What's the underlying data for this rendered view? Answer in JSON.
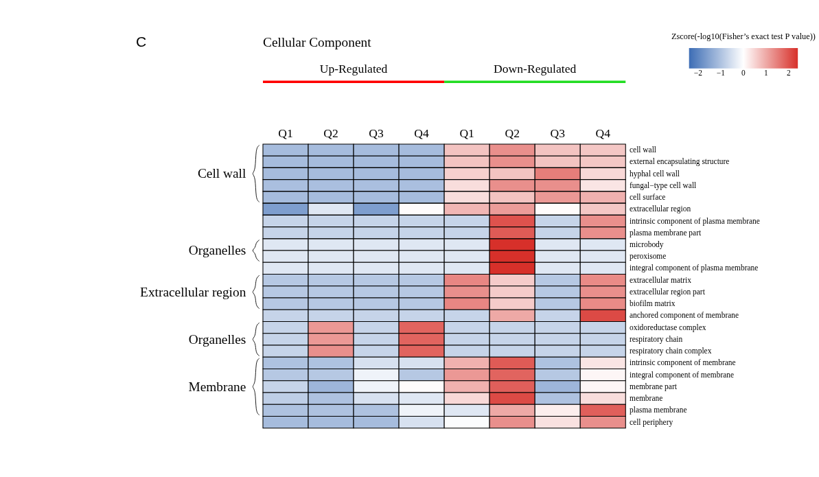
{
  "chart_data": {
    "type": "heatmap",
    "title": "Cellular Component",
    "clabel": "Zscore(-log10(Fisher’s exact test P value))",
    "categories": [
      "Q1",
      "Q2",
      "Q3",
      "Q4",
      "Q1",
      "Q2",
      "Q3",
      "Q4"
    ],
    "y_categories": [
      "cell wall",
      "external encapsulating structure",
      "hyphal cell wall",
      "fungal−type cell wall",
      "cell surface",
      "extracellular region",
      "intrinsic component of plasma membrane",
      "plasma membrane part",
      "microbody",
      "peroxisome",
      "integral component of plasma membrane",
      "extracellular matrix",
      "extracellular region part",
      "biofilm matrix",
      "anchored component of membrane",
      "oxidoreductase complex",
      "respiratory chain",
      "respiratory chain complex",
      "intrinsic component of membrane",
      "integral component of membrane",
      "membrane part",
      "membrane",
      "plasma membrane",
      "cell periphery"
    ],
    "cells": [
      [
        -1.1,
        -1.1,
        -1.1,
        -1.1,
        0.7,
        1.3,
        0.7,
        0.65
      ],
      [
        -1.1,
        -1.1,
        -1.1,
        -1.1,
        0.7,
        1.3,
        0.7,
        0.65
      ],
      [
        -1.1,
        -1.1,
        -1.1,
        -1.1,
        0.55,
        0.7,
        1.5,
        0.45
      ],
      [
        -1.05,
        -1.05,
        -1.05,
        -1.05,
        0.4,
        1.3,
        1.3,
        0.3
      ],
      [
        -1.1,
        -1.1,
        -1.1,
        -1.1,
        0.4,
        0.7,
        1.2,
        0.9
      ],
      [
        -1.6,
        -0.4,
        -1.6,
        0.05,
        0.85,
        1.15,
        0.05,
        0.65
      ],
      [
        -0.7,
        -0.7,
        -0.7,
        -0.7,
        -0.7,
        2.0,
        -0.7,
        1.3
      ],
      [
        -0.7,
        -0.7,
        -0.7,
        -0.7,
        -0.7,
        1.9,
        -0.7,
        1.3
      ],
      [
        -0.4,
        -0.4,
        -0.4,
        -0.4,
        -0.4,
        2.4,
        -0.4,
        -0.4
      ],
      [
        -0.4,
        -0.4,
        -0.4,
        -0.4,
        -0.4,
        2.4,
        -0.4,
        -0.4
      ],
      [
        -0.4,
        -0.4,
        -0.4,
        -0.4,
        -0.4,
        2.4,
        -0.4,
        -0.4
      ],
      [
        -0.9,
        -0.9,
        -0.9,
        -0.9,
        1.4,
        0.6,
        -0.9,
        1.35
      ],
      [
        -0.9,
        -0.9,
        -0.9,
        -0.9,
        1.3,
        0.6,
        -0.9,
        1.3
      ],
      [
        -0.9,
        -0.9,
        -0.9,
        -0.9,
        1.4,
        0.6,
        -0.9,
        1.35
      ],
      [
        -0.7,
        -0.7,
        -0.7,
        -0.7,
        -0.7,
        1.0,
        -0.7,
        2.1
      ],
      [
        -0.7,
        1.2,
        -0.7,
        1.8,
        -0.7,
        -0.7,
        -0.7,
        -0.7
      ],
      [
        -0.7,
        1.2,
        -0.7,
        1.8,
        -0.7,
        -0.7,
        -0.7,
        -0.7
      ],
      [
        -0.7,
        1.3,
        -0.7,
        1.8,
        -0.7,
        -0.7,
        -0.7,
        -0.7
      ],
      [
        -1.0,
        -1.0,
        -0.5,
        -0.5,
        0.9,
        1.9,
        -1.0,
        0.3
      ],
      [
        -0.9,
        -0.9,
        -0.2,
        -0.9,
        1.2,
        1.8,
        -0.9,
        0.1
      ],
      [
        -0.7,
        -1.2,
        -0.2,
        0.05,
        0.9,
        1.85,
        -1.2,
        0.1
      ],
      [
        -0.8,
        -1.0,
        -0.5,
        -0.4,
        0.45,
        2.1,
        -1.0,
        0.4
      ],
      [
        -1.0,
        -1.0,
        -1.0,
        -0.2,
        -0.4,
        1.0,
        0.2,
        1.85
      ],
      [
        -1.1,
        -1.1,
        -1.1,
        -0.5,
        -0.05,
        1.3,
        0.35,
        1.3
      ]
    ],
    "clim": [
      -2.4,
      2.4
    ],
    "cticks": [
      -2,
      -1,
      0,
      1,
      2
    ],
    "annotations": [
      "C",
      "Up-Regulated",
      "Down-Regulated",
      "Cell wall",
      "Organelles",
      "Extracellular region",
      "Organelles",
      "Membrane"
    ]
  }
}
